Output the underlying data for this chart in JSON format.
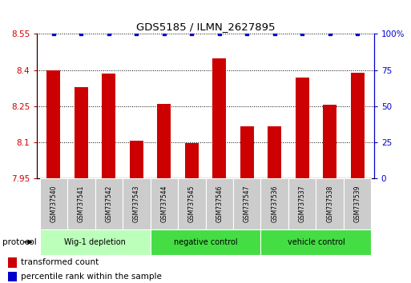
{
  "title": "GDS5185 / ILMN_2627895",
  "samples": [
    "GSM737540",
    "GSM737541",
    "GSM737542",
    "GSM737543",
    "GSM737544",
    "GSM737545",
    "GSM737546",
    "GSM737547",
    "GSM737536",
    "GSM737537",
    "GSM737538",
    "GSM737539"
  ],
  "bar_values": [
    8.4,
    8.33,
    8.385,
    8.105,
    8.26,
    8.095,
    8.45,
    8.165,
    8.165,
    8.37,
    8.255,
    8.39
  ],
  "percentile_values": [
    100,
    100,
    100,
    100,
    100,
    100,
    100,
    100,
    100,
    100,
    100,
    100
  ],
  "ylim_left": [
    7.95,
    8.55
  ],
  "ylim_right": [
    0,
    100
  ],
  "yticks_left": [
    7.95,
    8.1,
    8.25,
    8.4,
    8.55
  ],
  "yticks_right": [
    0,
    25,
    50,
    75,
    100
  ],
  "ytick_labels_left": [
    "7.95",
    "8.1",
    "8.25",
    "8.4",
    "8.55"
  ],
  "ytick_labels_right": [
    "0",
    "25",
    "50",
    "75",
    "100%"
  ],
  "bar_color": "#cc0000",
  "dot_color": "#0000cc",
  "group_data": [
    {
      "label": "Wig-1 depletion",
      "start": 0,
      "end": 3,
      "color": "#bbffbb"
    },
    {
      "label": "negative control",
      "start": 4,
      "end": 7,
      "color": "#44dd44"
    },
    {
      "label": "vehicle control",
      "start": 8,
      "end": 11,
      "color": "#44dd44"
    }
  ],
  "protocol_label": "protocol",
  "legend_bar_label": "transformed count",
  "legend_dot_label": "percentile rank within the sample",
  "left_tick_color": "#cc0000",
  "right_tick_color": "#0000cc",
  "sample_cell_color": "#cccccc",
  "bar_width": 0.5
}
